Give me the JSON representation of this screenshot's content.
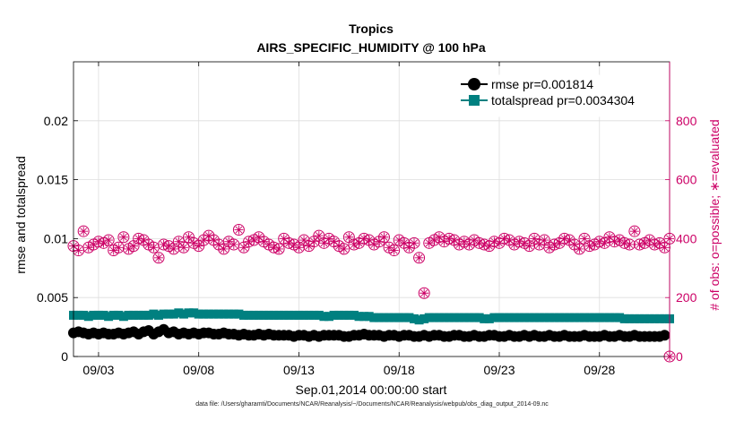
{
  "chart_data": {
    "type": "line",
    "title": "Tropics",
    "subtitle": "AIRS_SPECIFIC_HUMIDITY @ 100 hPa",
    "xlabel": "Sep.01,2014 00:00:00 start",
    "ylabel_left": "rmse and totalspread",
    "ylabel_right": "# of obs: o=possible; ∗=evaluated",
    "x_ticks": [
      {
        "day": 3,
        "label": "09/03"
      },
      {
        "day": 8,
        "label": "09/08"
      },
      {
        "day": 13,
        "label": "09/13"
      },
      {
        "day": 18,
        "label": "09/18"
      },
      {
        "day": 23,
        "label": "09/23"
      },
      {
        "day": 28,
        "label": "09/28"
      }
    ],
    "xlim_days": [
      1.75,
      31.5
    ],
    "ylim_left": [
      0,
      0.025
    ],
    "y_ticks_left": [
      "0",
      "0.005",
      "0.01",
      "0.015",
      "0.02"
    ],
    "y_tick_values_left": [
      0,
      0.005,
      0.01,
      0.015,
      0.02
    ],
    "ylim_right": [
      0,
      1000
    ],
    "y_ticks_right": [
      "0",
      "200",
      "400",
      "600",
      "800"
    ],
    "y_tick_values_right": [
      0,
      200,
      400,
      600,
      800
    ],
    "grid": true,
    "legend_position": "top-right",
    "series": [
      {
        "name": "rmse",
        "legend_label": "rmse pr=0.001814",
        "color": "#000000",
        "marker": "circle",
        "axis": "left",
        "values": [
          0.002,
          0.0021,
          0.002,
          0.0019,
          0.002,
          0.0019,
          0.002,
          0.0019,
          0.0019,
          0.002,
          0.0019,
          0.002,
          0.0021,
          0.0019,
          0.0021,
          0.0022,
          0.0019,
          0.0021,
          0.0023,
          0.002,
          0.0021,
          0.0019,
          0.002,
          0.0019,
          0.002,
          0.0019,
          0.002,
          0.002,
          0.0019,
          0.0019,
          0.002,
          0.0019,
          0.0019,
          0.0018,
          0.0019,
          0.0018,
          0.0018,
          0.0019,
          0.0018,
          0.0019,
          0.0018,
          0.0018,
          0.0018,
          0.0018,
          0.0017,
          0.0018,
          0.0018,
          0.0017,
          0.0018,
          0.0017,
          0.0018,
          0.0018,
          0.0018,
          0.0018,
          0.0017,
          0.0017,
          0.0018,
          0.0018,
          0.0019,
          0.0018,
          0.0018,
          0.0018,
          0.0017,
          0.0018,
          0.0018,
          0.0017,
          0.0018,
          0.0018,
          0.0017,
          0.0017,
          0.0018,
          0.0017,
          0.0018,
          0.0018,
          0.0017,
          0.0017,
          0.0018,
          0.0018,
          0.0017,
          0.0017,
          0.0018,
          0.0017,
          0.0017,
          0.0018,
          0.0018,
          0.0017,
          0.0017,
          0.0018,
          0.0017,
          0.0017,
          0.0018,
          0.0017,
          0.0018,
          0.0017,
          0.0017,
          0.0018,
          0.0017,
          0.0017,
          0.0018,
          0.0017,
          0.0017,
          0.0017,
          0.0018,
          0.0017,
          0.0017,
          0.0017,
          0.0018,
          0.0017,
          0.0017,
          0.0018,
          0.0017,
          0.0017,
          0.0018,
          0.0017,
          0.0017,
          0.0017,
          0.0017,
          0.0017,
          0.0018
        ]
      },
      {
        "name": "totalspread",
        "legend_label": "totalspread pr=0.0034304",
        "color": "#008080",
        "marker": "square",
        "axis": "left",
        "values": [
          0.0035,
          0.0035,
          0.0035,
          0.0034,
          0.0035,
          0.0035,
          0.0035,
          0.0034,
          0.0035,
          0.0035,
          0.0034,
          0.0035,
          0.0035,
          0.0035,
          0.0035,
          0.0035,
          0.0036,
          0.0035,
          0.0036,
          0.0036,
          0.0036,
          0.0037,
          0.0036,
          0.0037,
          0.0037,
          0.0036,
          0.0036,
          0.0036,
          0.0036,
          0.0036,
          0.0036,
          0.0036,
          0.0036,
          0.0036,
          0.0035,
          0.0035,
          0.0035,
          0.0035,
          0.0035,
          0.0035,
          0.0035,
          0.0035,
          0.0035,
          0.0035,
          0.0035,
          0.0035,
          0.0035,
          0.0035,
          0.0035,
          0.0035,
          0.0034,
          0.0034,
          0.0035,
          0.0035,
          0.0035,
          0.0035,
          0.0035,
          0.0034,
          0.0034,
          0.0034,
          0.0033,
          0.0033,
          0.0033,
          0.0033,
          0.0033,
          0.0033,
          0.0033,
          0.0033,
          0.0032,
          0.0031,
          0.0032,
          0.0033,
          0.0033,
          0.0033,
          0.0033,
          0.0033,
          0.0033,
          0.0033,
          0.0033,
          0.0033,
          0.0033,
          0.0033,
          0.0032,
          0.0032,
          0.0033,
          0.0033,
          0.0033,
          0.0033,
          0.0033,
          0.0033,
          0.0033,
          0.0033,
          0.0033,
          0.0033,
          0.0033,
          0.0033,
          0.0033,
          0.0033,
          0.0033,
          0.0033,
          0.0033,
          0.0033,
          0.0033,
          0.0033,
          0.0033,
          0.0033,
          0.0033,
          0.0033,
          0.0033,
          0.0033,
          0.0032,
          0.0032,
          0.0032,
          0.0032,
          0.0032,
          0.0032,
          0.0032,
          0.0032,
          0.0032,
          0.0032
        ]
      },
      {
        "name": "obs_possible",
        "color": "#cc0066",
        "marker": "open-circle",
        "axis": "right",
        "values": [
          375,
          360,
          425,
          370,
          380,
          390,
          385,
          395,
          360,
          370,
          405,
          365,
          375,
          400,
          395,
          380,
          370,
          335,
          380,
          375,
          365,
          390,
          370,
          405,
          385,
          375,
          395,
          410,
          395,
          380,
          365,
          390,
          380,
          430,
          370,
          390,
          395,
          405,
          390,
          380,
          370,
          365,
          400,
          385,
          380,
          370,
          395,
          375,
          390,
          410,
          385,
          400,
          390,
          375,
          365,
          405,
          380,
          385,
          400,
          395,
          380,
          390,
          405,
          370,
          360,
          395,
          385,
          370,
          385,
          335,
          215,
          385,
          395,
          405,
          390,
          400,
          395,
          380,
          390,
          380,
          395,
          385,
          380,
          375,
          390,
          385,
          400,
          395,
          380,
          390,
          385,
          375,
          400,
          380,
          395,
          370,
          380,
          385,
          400,
          395,
          380,
          365,
          400,
          375,
          380,
          390,
          385,
          405,
          390,
          395,
          385,
          380,
          425,
          380,
          385,
          395,
          380,
          385,
          370,
          400
        ]
      },
      {
        "name": "obs_evaluated",
        "color": "#cc0066",
        "marker": "star",
        "axis": "right",
        "values": [
          375,
          360,
          425,
          370,
          380,
          390,
          385,
          395,
          360,
          370,
          405,
          365,
          375,
          400,
          395,
          380,
          370,
          335,
          380,
          375,
          365,
          390,
          370,
          405,
          385,
          375,
          395,
          410,
          395,
          380,
          365,
          390,
          380,
          430,
          370,
          390,
          395,
          405,
          390,
          380,
          370,
          365,
          400,
          385,
          380,
          370,
          395,
          375,
          390,
          410,
          385,
          400,
          390,
          375,
          365,
          405,
          380,
          385,
          400,
          395,
          380,
          390,
          405,
          370,
          360,
          395,
          385,
          370,
          385,
          335,
          215,
          385,
          395,
          405,
          390,
          400,
          395,
          380,
          390,
          380,
          395,
          385,
          380,
          375,
          390,
          385,
          400,
          395,
          380,
          390,
          385,
          375,
          400,
          380,
          395,
          370,
          380,
          385,
          400,
          395,
          380,
          365,
          400,
          375,
          380,
          390,
          385,
          405,
          390,
          395,
          385,
          380,
          425,
          380,
          385,
          395,
          380,
          385,
          370,
          400
        ]
      }
    ],
    "extra_markers": [
      {
        "series": "obs_evaluated",
        "day": 31.5,
        "value": 0
      }
    ],
    "colors": {
      "left_axis": "#000000",
      "right_axis": "#cc0066",
      "grid": "#dddddd"
    }
  },
  "footnote": "data file: /Users/gharamti/Documents/NCAR/Reanalysis/~/Documents/NCAR/Reanalysis/webpub/obs_diag_output_2014-09.nc"
}
